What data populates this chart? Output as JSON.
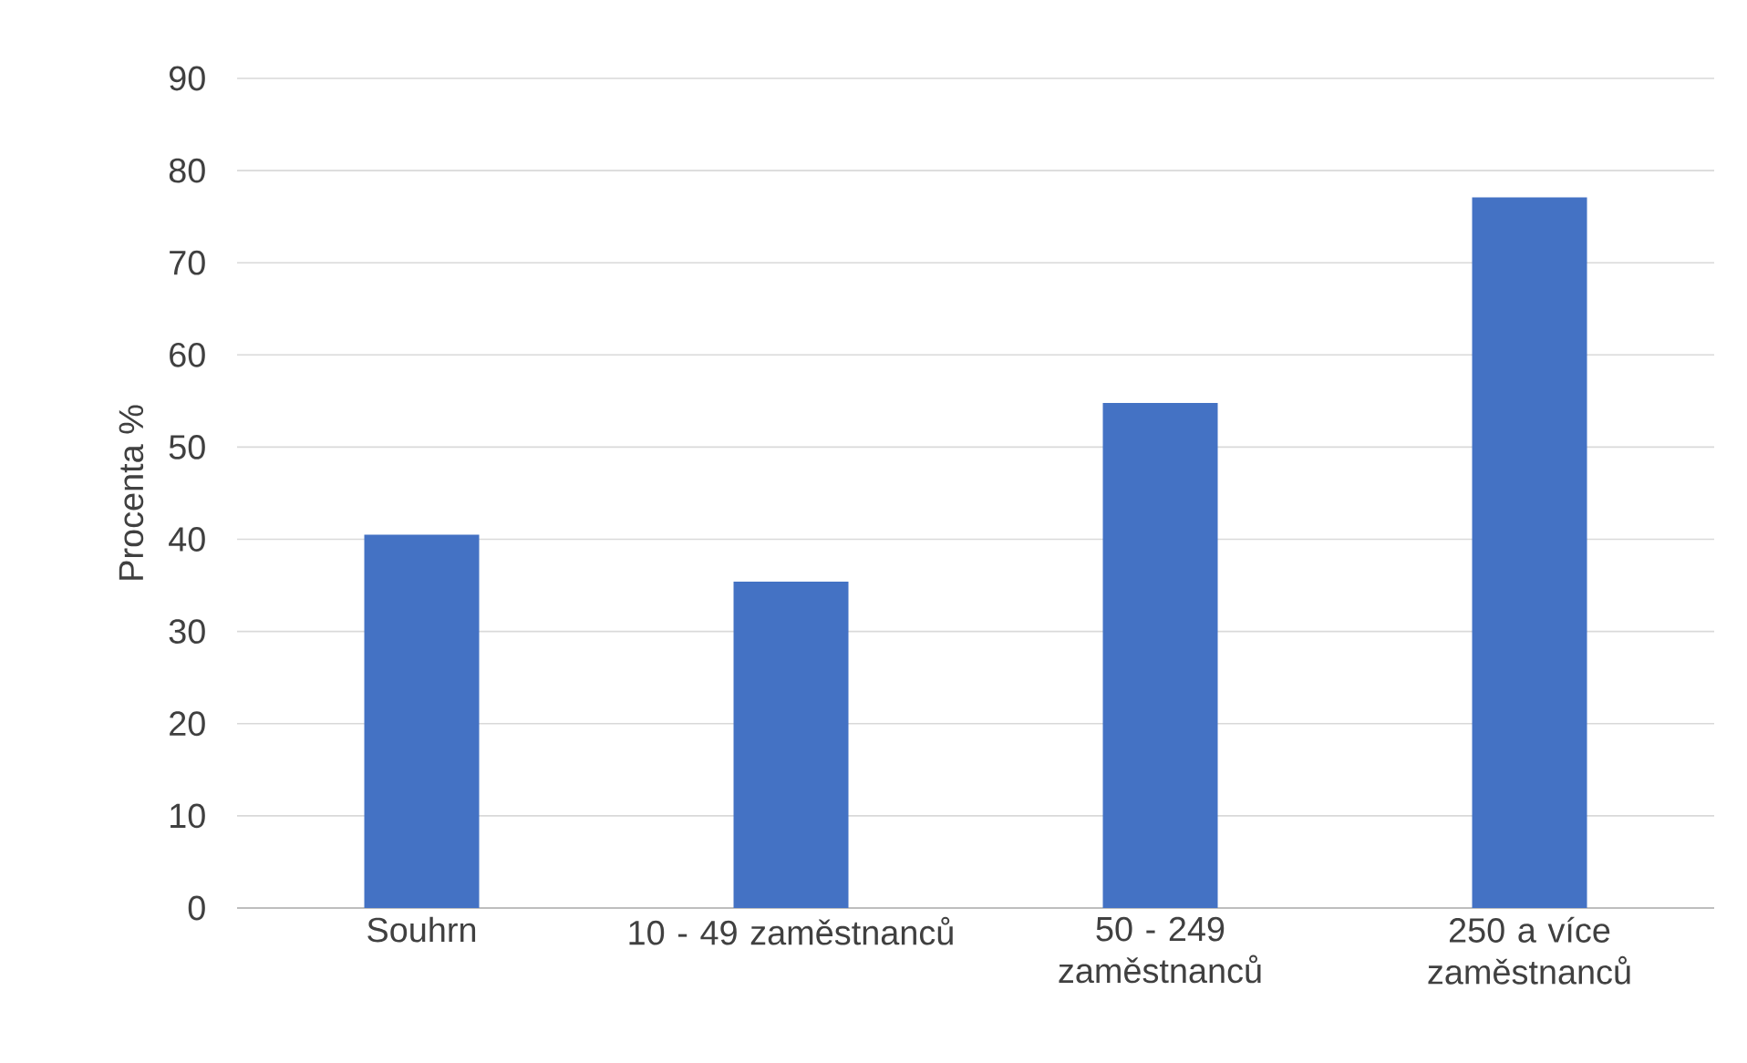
{
  "chart_data": {
    "type": "bar",
    "ylabel": "Procenta %",
    "categories": [
      "Souhrn",
      "10 - 49 zaměstnanců",
      "50 - 249 zaměstnanců",
      "250 a více zaměstnanců"
    ],
    "values": [
      40.5,
      35.4,
      54.8,
      77.1
    ],
    "color": "#4472c4",
    "ylim": [
      0,
      90
    ],
    "yticks": [
      0,
      10,
      20,
      30,
      40,
      50,
      60,
      70,
      80,
      90
    ],
    "grid": "y"
  }
}
